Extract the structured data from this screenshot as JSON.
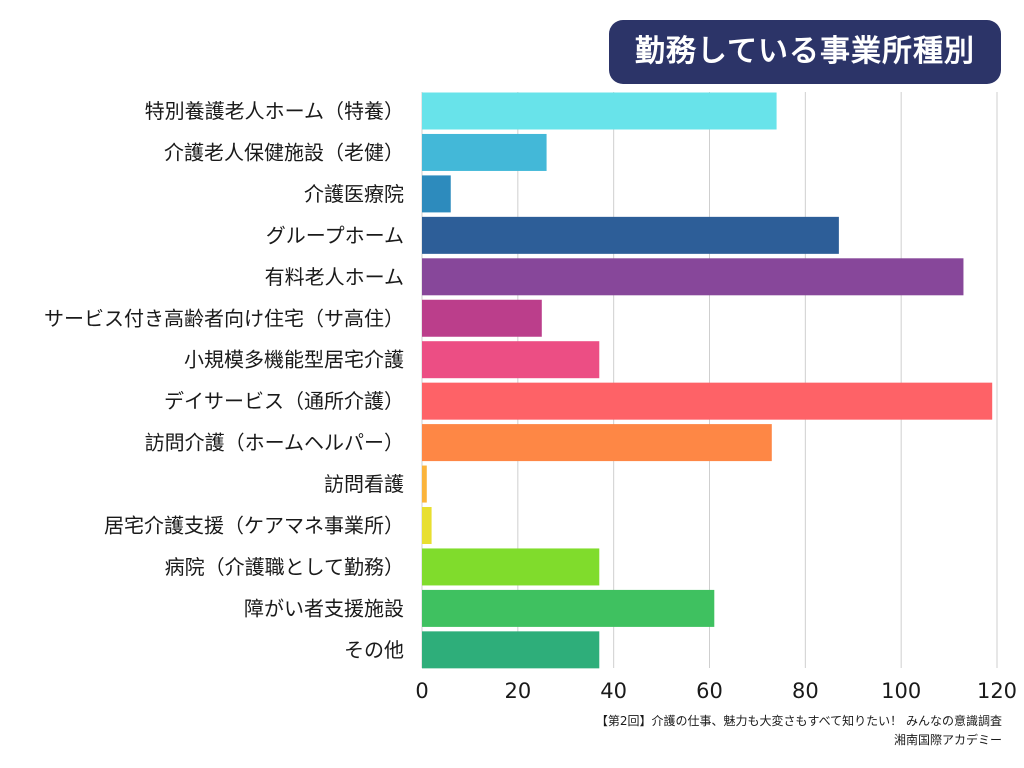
{
  "chart_data": {
    "type": "bar",
    "orientation": "horizontal",
    "title": "勤務している事業所種別",
    "categories": [
      "特別養護老人ホーム（特養）",
      "介護老人保健施設（老健）",
      "介護医療院",
      "グループホーム",
      "有料老人ホーム",
      "サービス付き高齢者向け住宅（サ高住）",
      "小規模多機能型居宅介護",
      "デイサービス（通所介護）",
      "訪問介護（ホームヘルパー）",
      "訪問看護",
      "居宅介護支援（ケアマネ事業所）",
      "病院（介護職として勤務）",
      "障がい者支援施設",
      "その他"
    ],
    "values": [
      74,
      26,
      6,
      87,
      113,
      25,
      37,
      119,
      73,
      1,
      2,
      37,
      61,
      37
    ],
    "colors": [
      "#68e3ea",
      "#43b8d8",
      "#2d8bbd",
      "#2d5e98",
      "#87479a",
      "#bb3e8b",
      "#ec4e84",
      "#fe6267",
      "#fe8745",
      "#fbb43b",
      "#e8df30",
      "#80dc2c",
      "#3fc160",
      "#2eae7a"
    ],
    "xlim": [
      0,
      120
    ],
    "xticks": [
      0,
      20,
      40,
      60,
      80,
      100,
      120
    ],
    "grid": true
  },
  "source_note": {
    "line1": "【第2回】介護の仕事、魅力も大変さもすべて知りたい！ みんなの意識調査",
    "line2": "湘南国際アカデミー"
  }
}
